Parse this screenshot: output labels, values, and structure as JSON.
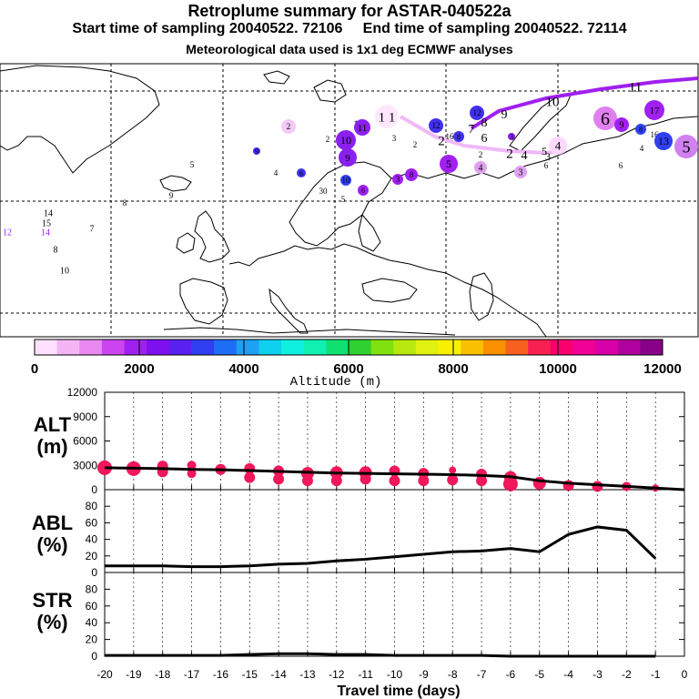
{
  "titles": {
    "main": "Retroplume summary for ASTAR-040522a",
    "sampling": "Start time of sampling 20040522. 72106     End time of sampling 20040522. 72114",
    "met": "Meteorological data used is 1x1 deg ECMWF analyses"
  },
  "colorbar": {
    "label": "Altitude (m)",
    "tick_labels": [
      "0",
      "2000",
      "4000",
      "6000",
      "8000",
      "10000",
      "12000"
    ],
    "colors": [
      "#ffe0ff",
      "#f5b5f5",
      "#e888f0",
      "#cc44f0",
      "#a020f0",
      "#8010f0",
      "#5a20f0",
      "#3040f0",
      "#1e6ef5",
      "#1ea0f5",
      "#10d0f0",
      "#10f0e0",
      "#10f0b0",
      "#10e070",
      "#30d030",
      "#80e010",
      "#b8e810",
      "#e0f010",
      "#f8f000",
      "#f8c000",
      "#f89000",
      "#f86020",
      "#f82050",
      "#f8006e",
      "#f00096",
      "#d800a8",
      "#b000a0",
      "#880088"
    ]
  },
  "map": {
    "labels": [
      {
        "t": "2",
        "x": 317,
        "y": 139,
        "r": 8,
        "c": "#f5c8f5",
        "s": 9
      },
      {
        "t": "1",
        "x": 391,
        "y": 136,
        "r": 0,
        "c": "#000",
        "s": 12
      },
      {
        "t": "11",
        "x": 398,
        "y": 140,
        "r": 9,
        "c": "#8a20f0",
        "s": 11
      },
      {
        "t": "1 1",
        "x": 425,
        "y": 128,
        "r": 13,
        "c": "#ffe8ff",
        "s": 15
      },
      {
        "t": "2",
        "x": 360,
        "y": 153,
        "r": 0,
        "c": "#000",
        "s": 9
      },
      {
        "t": "10",
        "x": 380,
        "y": 154,
        "r": 11,
        "c": "#8a20f0",
        "s": 12
      },
      {
        "t": "3",
        "x": 433,
        "y": 152,
        "r": 0,
        "c": "#000",
        "s": 9
      },
      {
        "t": "2",
        "x": 456,
        "y": 159,
        "r": 0,
        "c": "#000",
        "s": 9
      },
      {
        "t": "12",
        "x": 479,
        "y": 138,
        "r": 8,
        "c": "#4030f0",
        "s": 9
      },
      {
        "t": "2",
        "x": 485,
        "y": 154,
        "r": 0,
        "c": "#000",
        "s": 15
      },
      {
        "t": "16",
        "x": 494,
        "y": 150,
        "r": 0,
        "c": "#000",
        "s": 9
      },
      {
        "t": "8",
        "x": 504,
        "y": 150,
        "r": 6,
        "c": "#4030f0",
        "s": 8
      },
      {
        "t": "12",
        "x": 524,
        "y": 124,
        "r": 8,
        "c": "#4030f0",
        "s": 9
      },
      {
        "t": "7",
        "x": 518,
        "y": 141,
        "r": 0,
        "c": "#000",
        "s": 14
      },
      {
        "t": "8",
        "x": 532,
        "y": 134,
        "r": 0,
        "c": "#000",
        "s": 14
      },
      {
        "t": "6",
        "x": 532,
        "y": 151,
        "r": 0,
        "c": "#000",
        "s": 14
      },
      {
        "t": "9",
        "x": 554,
        "y": 125,
        "r": 0,
        "c": "#000",
        "s": 14
      },
      {
        "t": "9",
        "x": 382,
        "y": 173,
        "r": 10,
        "c": "#8a20f0",
        "s": 11
      },
      {
        "t": "9",
        "x": 282,
        "y": 166,
        "r": 4,
        "c": "#4030f0",
        "s": 8
      },
      {
        "t": "5",
        "x": 211,
        "y": 181,
        "r": 0,
        "c": "#000",
        "s": 9
      },
      {
        "t": "4",
        "x": 303,
        "y": 190,
        "r": 0,
        "c": "#000",
        "s": 9
      },
      {
        "t": "6",
        "x": 331,
        "y": 190,
        "r": 5,
        "c": "#4030f0",
        "s": 8
      },
      {
        "t": "10",
        "x": 380,
        "y": 198,
        "r": 6,
        "c": "#3040f0",
        "s": 9
      },
      {
        "t": "30",
        "x": 355,
        "y": 210,
        "r": 0,
        "c": "#000",
        "s": 9
      },
      {
        "t": "5",
        "x": 377,
        "y": 219,
        "r": 0,
        "c": "#000",
        "s": 9
      },
      {
        "t": "6",
        "x": 399,
        "y": 209,
        "r": 6,
        "c": "#a020f0",
        "s": 8
      },
      {
        "t": "3",
        "x": 437,
        "y": 197,
        "r": 6,
        "c": "#a020f0",
        "s": 9
      },
      {
        "t": "8",
        "x": 452,
        "y": 192,
        "r": 7,
        "c": "#a020f0",
        "s": 9
      },
      {
        "t": "5",
        "x": 493,
        "y": 180,
        "r": 10,
        "c": "#a020f0",
        "s": 12
      },
      {
        "t": "2",
        "x": 528,
        "y": 170,
        "r": 0,
        "c": "#000",
        "s": 9
      },
      {
        "t": "4",
        "x": 528,
        "y": 184,
        "r": 7,
        "c": "#e0a0f0",
        "s": 10
      },
      {
        "t": "3",
        "x": 562,
        "y": 150,
        "r": 4,
        "c": "#8a20f0",
        "s": 8
      },
      {
        "t": "2",
        "x": 560,
        "y": 168,
        "r": 0,
        "c": "#000",
        "s": 15
      },
      {
        "t": "4",
        "x": 576,
        "y": 170,
        "r": 0,
        "c": "#000",
        "s": 14
      },
      {
        "t": "3",
        "x": 572,
        "y": 189,
        "r": 7,
        "c": "#e0a0f0",
        "s": 10
      },
      {
        "t": "5",
        "x": 598,
        "y": 166,
        "r": 0,
        "c": "#000",
        "s": 12
      },
      {
        "t": "3",
        "x": 602,
        "y": 172,
        "r": 0,
        "c": "#000",
        "s": 12
      },
      {
        "t": "4",
        "x": 613,
        "y": 160,
        "r": 10,
        "c": "#ffd8ff",
        "s": 13
      },
      {
        "t": "6",
        "x": 600,
        "y": 182,
        "r": 0,
        "c": "#000",
        "s": 9
      },
      {
        "t": "10",
        "x": 607,
        "y": 111,
        "r": 0,
        "c": "#000",
        "s": 15
      },
      {
        "t": "11",
        "x": 698,
        "y": 95,
        "r": 0,
        "c": "#000",
        "s": 15
      },
      {
        "t": "6",
        "x": 665,
        "y": 130,
        "r": 13,
        "c": "#e080f0",
        "s": 20
      },
      {
        "t": "9",
        "x": 683,
        "y": 137,
        "r": 8,
        "c": "#a020f0",
        "s": 10
      },
      {
        "t": "17",
        "x": 719,
        "y": 121,
        "r": 11,
        "c": "#a020f0",
        "s": 11
      },
      {
        "t": "8",
        "x": 704,
        "y": 142,
        "r": 6,
        "c": "#3040f0",
        "s": 8
      },
      {
        "t": "16",
        "x": 719,
        "y": 148,
        "r": 0,
        "c": "#000",
        "s": 9
      },
      {
        "t": "4",
        "x": 705,
        "y": 163,
        "r": 0,
        "c": "#000",
        "s": 9
      },
      {
        "t": "13",
        "x": 729,
        "y": 155,
        "r": 10,
        "c": "#3040f0",
        "s": 12
      },
      {
        "t": "5",
        "x": 754,
        "y": 161,
        "r": 13,
        "c": "#d080f0",
        "s": 18
      },
      {
        "t": "6",
        "x": 682,
        "y": 182,
        "r": 0,
        "c": "#000",
        "s": 9
      },
      {
        "t": "8",
        "x": 137,
        "y": 223,
        "r": 0,
        "c": "#000",
        "s": 9
      },
      {
        "t": "9",
        "x": 188,
        "y": 215,
        "r": 0,
        "c": "#000",
        "s": 9
      },
      {
        "t": "14",
        "x": 53,
        "y": 234,
        "r": 0,
        "c": "#000",
        "s": 10
      },
      {
        "t": "15",
        "x": 51,
        "y": 245,
        "r": 0,
        "c": "#000",
        "s": 10
      },
      {
        "t": "14",
        "x": 50,
        "y": 255,
        "r": 0,
        "c": "#a020f0",
        "s": 10
      },
      {
        "t": "12",
        "x": 8,
        "y": 255,
        "r": 0,
        "c": "#a020f0",
        "s": 10
      },
      {
        "t": "7",
        "x": 101,
        "y": 251,
        "r": 0,
        "c": "#000",
        "s": 10
      },
      {
        "t": "8",
        "x": 61,
        "y": 274,
        "r": 0,
        "c": "#000",
        "s": 10
      },
      {
        "t": "10",
        "x": 71,
        "y": 297,
        "r": 0,
        "c": "#000",
        "s": 10
      }
    ]
  },
  "panels": {
    "alt": {
      "label": "ALT\n(m)",
      "ticks": [
        "0",
        "3000",
        "6000",
        "9000",
        "12000"
      ]
    },
    "abl": {
      "label": "ABL\n(%)",
      "ticks": [
        "0",
        "20",
        "40",
        "60",
        "80"
      ]
    },
    "str": {
      "label": "STR\n(%)",
      "ticks": [
        "0",
        "20",
        "40",
        "60",
        "80"
      ]
    }
  },
  "x_axis": {
    "label": "Travel time (days)",
    "ticks": [
      "-20",
      "-19",
      "-18",
      "-17",
      "-16",
      "-15",
      "-14",
      "-13",
      "-12",
      "-11",
      "-10",
      "-9",
      "-8",
      "-7",
      "-6",
      "-5",
      "-4",
      "-3",
      "-2",
      "-1",
      "0"
    ]
  },
  "chart_data": [
    {
      "type": "line",
      "name": "ALT",
      "ylabel": "ALT (m)",
      "xlabel": "Travel time (days)",
      "xlim": [
        -20,
        0
      ],
      "ylim": [
        0,
        12000
      ],
      "x": [
        -20,
        -19,
        -18,
        -17,
        -16,
        -15,
        -14,
        -13,
        -12,
        -11,
        -10,
        -9,
        -8,
        -7,
        -6,
        -5,
        -4,
        -3,
        -2,
        -1,
        0
      ],
      "mean_line": [
        2700,
        2650,
        2600,
        2500,
        2450,
        2350,
        2250,
        2150,
        2050,
        2000,
        1950,
        1900,
        1850,
        1750,
        1600,
        1100,
        800,
        600,
        400,
        200,
        0
      ],
      "cluster_points": [
        {
          "x": -20,
          "y": 2700,
          "size": 8
        },
        {
          "x": -19,
          "y": 2600,
          "size": 8
        },
        {
          "x": -18,
          "y": 2900,
          "size": 6
        },
        {
          "x": -18,
          "y": 2200,
          "size": 6
        },
        {
          "x": -17,
          "y": 3000,
          "size": 5
        },
        {
          "x": -17,
          "y": 2000,
          "size": 5
        },
        {
          "x": -16,
          "y": 2500,
          "size": 6
        },
        {
          "x": -15,
          "y": 2600,
          "size": 6
        },
        {
          "x": -15,
          "y": 1500,
          "size": 6
        },
        {
          "x": -14,
          "y": 2300,
          "size": 6
        },
        {
          "x": -14,
          "y": 1300,
          "size": 6
        },
        {
          "x": -13,
          "y": 2000,
          "size": 7
        },
        {
          "x": -13,
          "y": 1100,
          "size": 6
        },
        {
          "x": -12,
          "y": 2100,
          "size": 7
        },
        {
          "x": -12,
          "y": 1100,
          "size": 6
        },
        {
          "x": -11,
          "y": 2100,
          "size": 7
        },
        {
          "x": -11,
          "y": 1300,
          "size": 6
        },
        {
          "x": -10,
          "y": 2300,
          "size": 6
        },
        {
          "x": -10,
          "y": 1100,
          "size": 6
        },
        {
          "x": -9,
          "y": 2000,
          "size": 6
        },
        {
          "x": -9,
          "y": 1100,
          "size": 6
        },
        {
          "x": -8,
          "y": 2400,
          "size": 4
        },
        {
          "x": -8,
          "y": 1200,
          "size": 6
        },
        {
          "x": -7,
          "y": 1900,
          "size": 6
        },
        {
          "x": -7,
          "y": 1100,
          "size": 6
        },
        {
          "x": -6,
          "y": 1500,
          "size": 7
        },
        {
          "x": -6,
          "y": 700,
          "size": 8
        },
        {
          "x": -5,
          "y": 800,
          "size": 7
        },
        {
          "x": -4,
          "y": 500,
          "size": 6
        },
        {
          "x": -3,
          "y": 400,
          "size": 6
        },
        {
          "x": -2,
          "y": 400,
          "size": 5
        },
        {
          "x": -1,
          "y": 200,
          "size": 4
        }
      ],
      "cluster_color": "#f0185a"
    },
    {
      "type": "line",
      "name": "ABL",
      "ylabel": "ABL (%)",
      "xlim": [
        -20,
        0
      ],
      "ylim": [
        0,
        100
      ],
      "x": [
        -20,
        -19,
        -18,
        -17,
        -16,
        -15,
        -14,
        -13,
        -12,
        -11,
        -10,
        -9,
        -8,
        -7,
        -6,
        -5,
        -4,
        -3,
        -2,
        -1
      ],
      "values": [
        8,
        8,
        8,
        7,
        7,
        8,
        10,
        11,
        14,
        16,
        19,
        22,
        25,
        26,
        29,
        25,
        46,
        55,
        51,
        17
      ]
    },
    {
      "type": "line",
      "name": "STR",
      "ylabel": "STR (%)",
      "xlim": [
        -20,
        0
      ],
      "ylim": [
        0,
        100
      ],
      "x": [
        -20,
        -19,
        -18,
        -17,
        -16,
        -15,
        -14,
        -13,
        -12,
        -11,
        -10,
        -9,
        -8,
        -7,
        -6,
        -5,
        -4,
        -3,
        -2,
        -1
      ],
      "values": [
        1,
        1,
        1,
        1,
        1,
        2,
        3,
        3,
        2,
        2,
        1,
        1,
        1,
        1,
        0,
        0,
        0,
        0,
        0,
        0
      ]
    }
  ]
}
